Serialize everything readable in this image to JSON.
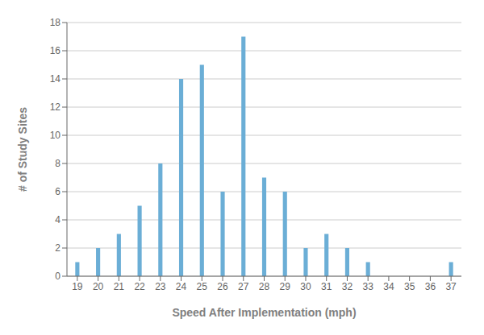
{
  "chart_data": {
    "type": "bar",
    "x": [
      19,
      20,
      21,
      22,
      23,
      24,
      25,
      26,
      27,
      28,
      29,
      30,
      31,
      32,
      33,
      34,
      35,
      36,
      37
    ],
    "values": [
      1,
      2,
      3,
      5,
      8,
      14,
      15,
      6,
      17,
      7,
      6,
      2,
      3,
      2,
      1,
      0,
      0,
      0,
      1
    ],
    "color": "#6baed6",
    "xlabel": "Speed After Implementation (mph)",
    "ylabel": "# of Study Sites",
    "xlim": [
      18.5,
      37.5
    ],
    "xticks": [
      19,
      20,
      21,
      22,
      23,
      24,
      25,
      26,
      27,
      28,
      29,
      30,
      31,
      32,
      33,
      34,
      35,
      36,
      37
    ],
    "ylim": [
      0,
      18
    ],
    "yticks": [
      0,
      2,
      4,
      6,
      8,
      10,
      12,
      14,
      16,
      18
    ],
    "grid": true
  }
}
